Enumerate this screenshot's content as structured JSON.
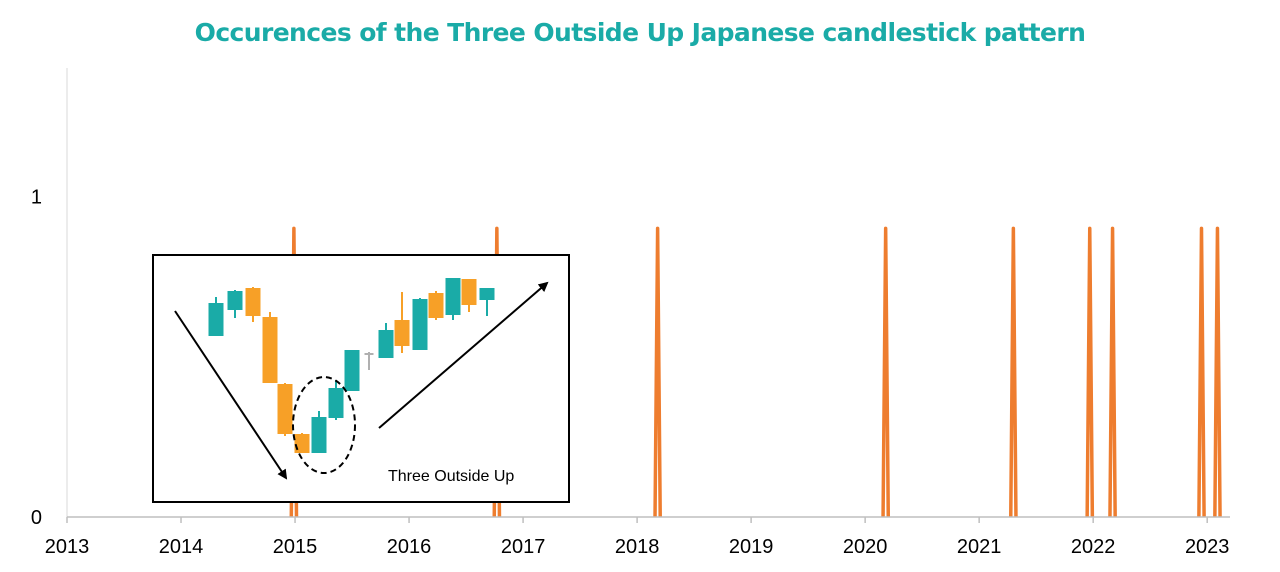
{
  "chart_data": {
    "type": "line",
    "title": "Occurences of the Three Outside Up Japanese candlestick pattern",
    "xlabel": "",
    "ylabel": "",
    "x_ticks": [
      "2013",
      "2014",
      "2015",
      "2016",
      "2017",
      "2018",
      "2019",
      "2020",
      "2021",
      "2022",
      "2023"
    ],
    "y_ticks": [
      "0",
      "1"
    ],
    "xlim": [
      2013.0,
      2023.2
    ],
    "ylim": [
      0,
      1.4
    ],
    "grid": false,
    "legend": "none",
    "line_color": "#ee7d2f",
    "series": [
      {
        "occurrence_dates": [
          2014.99,
          2016.77,
          2018.18,
          2020.18,
          2021.3,
          2021.97,
          2022.17,
          2022.95,
          2023.09
        ],
        "value_at_occurrence": 0.9,
        "baseline_value": 0
      }
    ],
    "inset": {
      "label": "Three Outside Up",
      "bull_color": "#1aaba7",
      "bear_color": "#f7a027",
      "doji_color": "#b0b0b0"
    }
  }
}
